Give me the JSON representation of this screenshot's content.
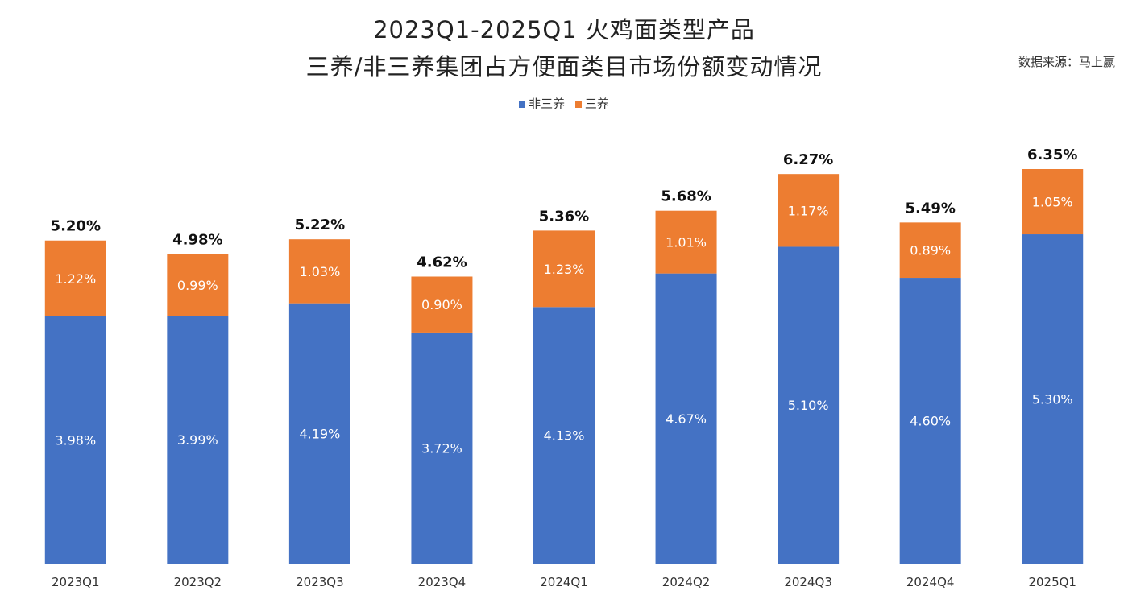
{
  "title_line1": "2023Q1-2025Q1 火鸡面类型产品",
  "title_line2": "三养/非三养集团占方便面类目市场份额变动情况",
  "source": "数据来源：马上赢",
  "colors": {
    "non_samyang": "#4472C4",
    "samyang": "#ED7D31",
    "axis": "#BFBFBF"
  },
  "chart_data": {
    "type": "bar",
    "stacked": true,
    "categories": [
      "2023Q1",
      "2023Q2",
      "2023Q3",
      "2023Q4",
      "2024Q1",
      "2024Q2",
      "2024Q3",
      "2024Q4",
      "2025Q1"
    ],
    "series": [
      {
        "name": "非三养",
        "values": [
          3.98,
          3.99,
          4.19,
          3.72,
          4.13,
          4.67,
          5.1,
          4.6,
          5.3
        ],
        "labels": [
          "3.98%",
          "3.99%",
          "4.19%",
          "3.72%",
          "4.13%",
          "4.67%",
          "5.10%",
          "4.60%",
          "5.30%"
        ]
      },
      {
        "name": "三养",
        "values": [
          1.22,
          0.99,
          1.03,
          0.9,
          1.23,
          1.01,
          1.17,
          0.89,
          1.05
        ],
        "labels": [
          "1.22%",
          "0.99%",
          "1.03%",
          "0.90%",
          "1.23%",
          "1.01%",
          "1.17%",
          "0.89%",
          "1.05%"
        ]
      }
    ],
    "totals": [
      5.2,
      4.98,
      5.22,
      4.62,
      5.36,
      5.68,
      6.27,
      5.49,
      6.35
    ],
    "total_labels": [
      "5.20%",
      "4.98%",
      "5.22%",
      "4.62%",
      "5.36%",
      "5.68%",
      "6.27%",
      "5.49%",
      "6.35%"
    ],
    "ylim": [
      0,
      6.35
    ],
    "legend_position": "top",
    "grid": false
  }
}
